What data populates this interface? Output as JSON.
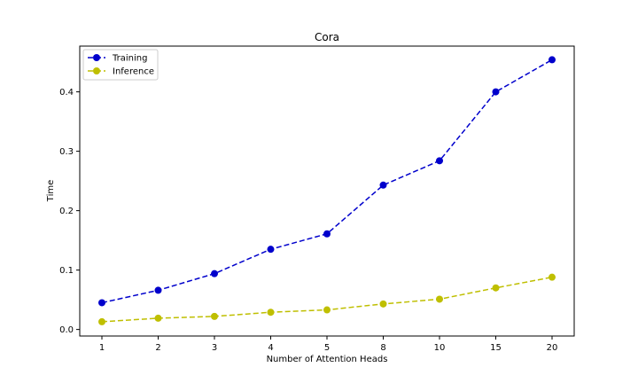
{
  "chart_data": {
    "type": "line",
    "title": "Cora",
    "xlabel": "Number of Attention Heads",
    "ylabel": "Time",
    "categories": [
      "1",
      "2",
      "3",
      "4",
      "5",
      "8",
      "10",
      "15",
      "20"
    ],
    "ylim": [
      -0.011,
      0.477
    ],
    "yticks": [
      0.0,
      0.1,
      0.2,
      0.3,
      0.4
    ],
    "ytick_labels": [
      "0.0",
      "0.1",
      "0.2",
      "0.3",
      "0.4"
    ],
    "grid": false,
    "legend_position": "top-left",
    "series": [
      {
        "name": "Training",
        "color": "#0000cc",
        "values": [
          0.045,
          0.066,
          0.094,
          0.135,
          0.161,
          0.243,
          0.284,
          0.4,
          0.454
        ]
      },
      {
        "name": "Inference",
        "color": "#bfbf00",
        "values": [
          0.013,
          0.019,
          0.022,
          0.029,
          0.033,
          0.043,
          0.051,
          0.07,
          0.088
        ]
      }
    ]
  }
}
